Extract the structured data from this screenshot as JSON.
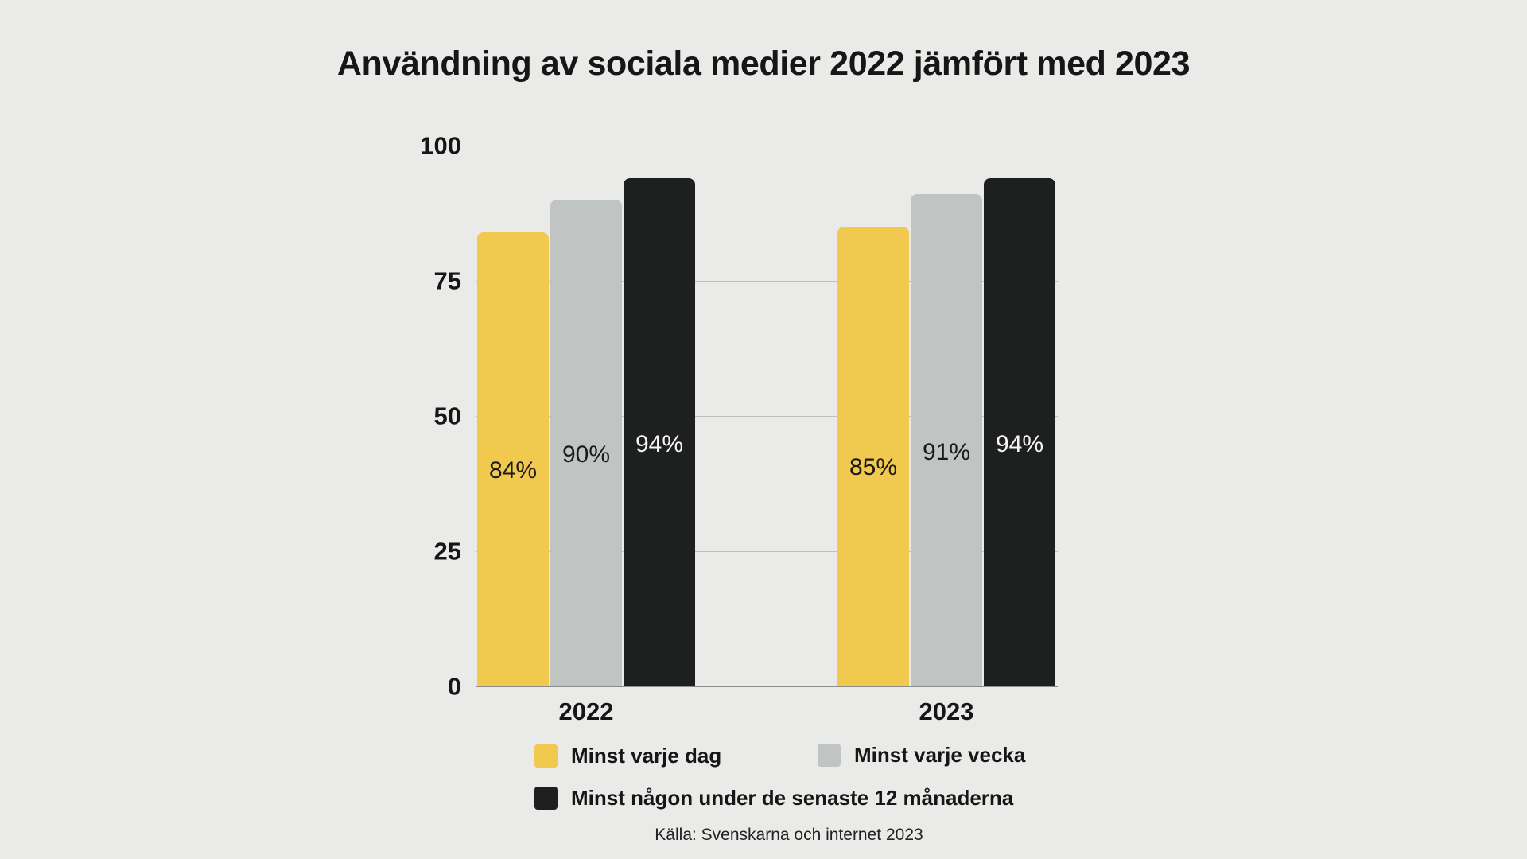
{
  "page": {
    "background": "#EAEAE9",
    "text_color": "#161616"
  },
  "chart_data": {
    "type": "bar",
    "title": "Användning av sociala medier 2022 jämfört med 2023",
    "categories": [
      "2022",
      "2023"
    ],
    "series": [
      {
        "name": "Minst varje dag",
        "color": "#F1C94E",
        "label_color": "#1A1A1A",
        "values": [
          84,
          85
        ]
      },
      {
        "name": "Minst varje vecka",
        "color": "#C0C5C3",
        "label_color": "#1A1A1A",
        "values": [
          90,
          91
        ]
      },
      {
        "name": "Minst någon under de senaste 12 månaderna",
        "color": "#1E1F1F",
        "label_color": "#F5F5F3",
        "values": [
          94,
          94
        ]
      }
    ],
    "value_suffix": "%",
    "y_ticks": [
      0,
      25,
      50,
      75,
      100
    ],
    "ylim": [
      0,
      100
    ],
    "grid": true,
    "legend_position": "bottom",
    "gridline_color": "#BEBEBE",
    "axis_line_color": "#8E8E8E"
  },
  "source": "Källa: Svenskarna och internet 2023"
}
